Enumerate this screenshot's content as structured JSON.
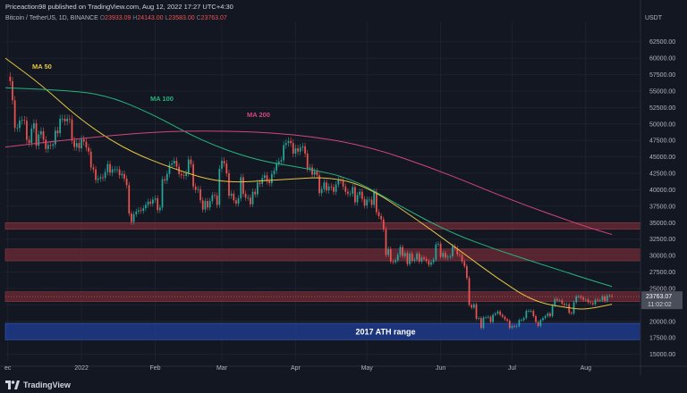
{
  "header": {
    "caption": "Priceaction98 published on TradingView.com, Aug 12, 2022 17:27 UTC+4:30",
    "symbol": "Bitcoin / TetherUS, 1D, BINANCE",
    "ohlc": [
      {
        "label": "O",
        "value": "23933.09"
      },
      {
        "label": "H",
        "value": "24143.00"
      },
      {
        "label": "L",
        "value": "23583.00"
      },
      {
        "label": "C",
        "value": "23763.07"
      }
    ],
    "currency": "USDT"
  },
  "footer": {
    "brand": "TradingView"
  },
  "chart_data": {
    "type": "candlestick",
    "y_ticks": [
      15000,
      17500,
      20000,
      22500,
      25000,
      27500,
      30000,
      32500,
      35000,
      37500,
      40000,
      42500,
      45000,
      47500,
      50000,
      52500,
      55000,
      57500,
      60000,
      62500
    ],
    "ylim": [
      14000,
      64500
    ],
    "x_tick_labels": [
      {
        "label": "ec",
        "date": "2021-12-01"
      },
      {
        "label": "2022",
        "date": "2022-01-01"
      },
      {
        "label": "Feb",
        "date": "2022-02-01"
      },
      {
        "label": "Mar",
        "date": "2022-03-01"
      },
      {
        "label": "Apr",
        "date": "2022-04-01"
      },
      {
        "label": "May",
        "date": "2022-05-01"
      },
      {
        "label": "Jun",
        "date": "2022-06-01"
      },
      {
        "label": "Jul",
        "date": "2022-07-01"
      },
      {
        "label": "Aug",
        "date": "2022-08-01"
      }
    ],
    "x_range": [
      "2021-11-30",
      "2022-08-24"
    ],
    "last_price": "23763.07",
    "countdown": "11:02:02",
    "colors": {
      "up": "#26a69a",
      "down": "#ef5350",
      "ma50": "#e5c443",
      "ma100": "#26b47c",
      "ma200": "#d1467a",
      "zone": "#6e2b36",
      "ath_zone": "#1e3a8a"
    },
    "zones": [
      {
        "type": "resistance",
        "from": 34000,
        "to": 35000
      },
      {
        "type": "resistance",
        "from": 29200,
        "to": 31000
      },
      {
        "type": "resistance",
        "from": 23000,
        "to": 24500
      },
      {
        "type": "ath",
        "from": 17200,
        "to": 19700,
        "label": "2017 ATH range"
      }
    ],
    "moving_averages": [
      {
        "name": "MA 50",
        "points": [
          [
            "2021-11-30",
            60000
          ],
          [
            "2021-12-15",
            56000
          ],
          [
            "2022-01-01",
            50500
          ],
          [
            "2022-01-20",
            46000
          ],
          [
            "2022-02-10",
            43000
          ],
          [
            "2022-03-01",
            41000
          ],
          [
            "2022-03-25",
            41500
          ],
          [
            "2022-04-15",
            42000
          ],
          [
            "2022-05-01",
            40500
          ],
          [
            "2022-05-20",
            36000
          ],
          [
            "2022-06-10",
            30500
          ],
          [
            "2022-06-25",
            26500
          ],
          [
            "2022-07-10",
            23000
          ],
          [
            "2022-07-25",
            22000
          ],
          [
            "2022-08-01",
            21800
          ],
          [
            "2022-08-12",
            22600
          ]
        ]
      },
      {
        "name": "MA 100",
        "points": [
          [
            "2021-11-30",
            55500
          ],
          [
            "2021-12-20",
            55200
          ],
          [
            "2022-01-10",
            54600
          ],
          [
            "2022-01-31",
            51500
          ],
          [
            "2022-02-20",
            47500
          ],
          [
            "2022-03-15",
            44500
          ],
          [
            "2022-04-05",
            43300
          ],
          [
            "2022-04-25",
            41700
          ],
          [
            "2022-05-15",
            37500
          ],
          [
            "2022-06-05",
            33500
          ],
          [
            "2022-06-25",
            30800
          ],
          [
            "2022-07-15",
            28500
          ],
          [
            "2022-08-01",
            26500
          ],
          [
            "2022-08-12",
            25300
          ]
        ]
      },
      {
        "name": "MA 200",
        "points": [
          [
            "2021-11-30",
            46500
          ],
          [
            "2021-12-31",
            47800
          ],
          [
            "2022-01-31",
            48800
          ],
          [
            "2022-02-28",
            49000
          ],
          [
            "2022-03-31",
            48500
          ],
          [
            "2022-04-30",
            46800
          ],
          [
            "2022-05-31",
            43000
          ],
          [
            "2022-06-30",
            38500
          ],
          [
            "2022-07-31",
            34500
          ],
          [
            "2022-08-12",
            33200
          ]
        ]
      }
    ],
    "candles_daily_close": [
      [
        "2021-12-01",
        57200
      ],
      [
        "2021-12-02",
        56500
      ],
      [
        "2021-12-03",
        53600
      ],
      [
        "2021-12-04",
        49400
      ],
      [
        "2021-12-05",
        49400
      ],
      [
        "2021-12-06",
        50500
      ],
      [
        "2021-12-07",
        50600
      ],
      [
        "2021-12-08",
        50500
      ],
      [
        "2021-12-09",
        47600
      ],
      [
        "2021-12-10",
        47100
      ],
      [
        "2021-12-11",
        49300
      ],
      [
        "2021-12-12",
        50100
      ],
      [
        "2021-12-13",
        46700
      ],
      [
        "2021-12-14",
        48400
      ],
      [
        "2021-12-15",
        48900
      ],
      [
        "2021-12-16",
        47600
      ],
      [
        "2021-12-17",
        46200
      ],
      [
        "2021-12-18",
        46800
      ],
      [
        "2021-12-19",
        46700
      ],
      [
        "2021-12-20",
        46900
      ],
      [
        "2021-12-21",
        49000
      ],
      [
        "2021-12-22",
        48600
      ],
      [
        "2021-12-23",
        50800
      ],
      [
        "2021-12-24",
        50800
      ],
      [
        "2021-12-25",
        50400
      ],
      [
        "2021-12-26",
        50800
      ],
      [
        "2021-12-27",
        50700
      ],
      [
        "2021-12-28",
        47500
      ],
      [
        "2021-12-29",
        46500
      ],
      [
        "2021-12-30",
        47100
      ],
      [
        "2021-12-31",
        46300
      ],
      [
        "2022-01-01",
        47700
      ],
      [
        "2022-01-02",
        47300
      ],
      [
        "2022-01-03",
        46400
      ],
      [
        "2022-01-04",
        45800
      ],
      [
        "2022-01-05",
        43400
      ],
      [
        "2022-01-06",
        43100
      ],
      [
        "2022-01-07",
        41500
      ],
      [
        "2022-01-08",
        41700
      ],
      [
        "2022-01-09",
        41900
      ],
      [
        "2022-01-10",
        41800
      ],
      [
        "2022-01-11",
        42700
      ],
      [
        "2022-01-12",
        43900
      ],
      [
        "2022-01-13",
        42600
      ],
      [
        "2022-01-14",
        43100
      ],
      [
        "2022-01-15",
        43100
      ],
      [
        "2022-01-16",
        43100
      ],
      [
        "2022-01-17",
        42200
      ],
      [
        "2022-01-18",
        42400
      ],
      [
        "2022-01-19",
        41700
      ],
      [
        "2022-01-20",
        40700
      ],
      [
        "2022-01-21",
        36400
      ],
      [
        "2022-01-22",
        35100
      ],
      [
        "2022-01-23",
        36300
      ],
      [
        "2022-01-24",
        36700
      ],
      [
        "2022-01-25",
        36900
      ],
      [
        "2022-01-26",
        36800
      ],
      [
        "2022-01-27",
        37200
      ],
      [
        "2022-01-28",
        37700
      ],
      [
        "2022-01-29",
        38200
      ],
      [
        "2022-01-30",
        37900
      ],
      [
        "2022-01-31",
        38500
      ],
      [
        "2022-02-01",
        38700
      ],
      [
        "2022-02-02",
        36900
      ],
      [
        "2022-02-03",
        37300
      ],
      [
        "2022-02-04",
        41600
      ],
      [
        "2022-02-05",
        41400
      ],
      [
        "2022-02-06",
        42400
      ],
      [
        "2022-02-07",
        43800
      ],
      [
        "2022-02-08",
        44000
      ],
      [
        "2022-02-09",
        44400
      ],
      [
        "2022-02-10",
        43500
      ],
      [
        "2022-02-11",
        42400
      ],
      [
        "2022-02-12",
        42200
      ],
      [
        "2022-02-13",
        42100
      ],
      [
        "2022-02-14",
        42500
      ],
      [
        "2022-02-15",
        44600
      ],
      [
        "2022-02-16",
        43900
      ],
      [
        "2022-02-17",
        40500
      ],
      [
        "2022-02-18",
        40000
      ],
      [
        "2022-02-19",
        40100
      ],
      [
        "2022-02-20",
        38400
      ],
      [
        "2022-02-21",
        37000
      ],
      [
        "2022-02-22",
        38300
      ],
      [
        "2022-02-23",
        37300
      ],
      [
        "2022-02-24",
        38300
      ],
      [
        "2022-02-25",
        39200
      ],
      [
        "2022-02-26",
        39100
      ],
      [
        "2022-02-27",
        37700
      ],
      [
        "2022-02-28",
        43200
      ],
      [
        "2022-03-01",
        44400
      ],
      [
        "2022-03-02",
        44000
      ],
      [
        "2022-03-03",
        42500
      ],
      [
        "2022-03-04",
        39100
      ],
      [
        "2022-03-05",
        39400
      ],
      [
        "2022-03-06",
        38400
      ],
      [
        "2022-03-07",
        37900
      ],
      [
        "2022-03-08",
        38700
      ],
      [
        "2022-03-09",
        41900
      ],
      [
        "2022-03-10",
        39400
      ],
      [
        "2022-03-11",
        38800
      ],
      [
        "2022-03-12",
        38800
      ],
      [
        "2022-03-13",
        37800
      ],
      [
        "2022-03-14",
        39700
      ],
      [
        "2022-03-15",
        39300
      ],
      [
        "2022-03-16",
        41100
      ],
      [
        "2022-03-17",
        40900
      ],
      [
        "2022-03-18",
        41800
      ],
      [
        "2022-03-19",
        42200
      ],
      [
        "2022-03-20",
        41300
      ],
      [
        "2022-03-21",
        41000
      ],
      [
        "2022-03-22",
        42400
      ],
      [
        "2022-03-23",
        42900
      ],
      [
        "2022-03-24",
        44000
      ],
      [
        "2022-03-25",
        44300
      ],
      [
        "2022-03-26",
        44500
      ],
      [
        "2022-03-27",
        46800
      ],
      [
        "2022-03-28",
        47100
      ],
      [
        "2022-03-29",
        47400
      ],
      [
        "2022-03-30",
        47100
      ],
      [
        "2022-03-31",
        45500
      ],
      [
        "2022-04-01",
        46300
      ],
      [
        "2022-04-02",
        45800
      ],
      [
        "2022-04-03",
        46400
      ],
      [
        "2022-04-04",
        46600
      ],
      [
        "2022-04-05",
        45500
      ],
      [
        "2022-04-06",
        43200
      ],
      [
        "2022-04-07",
        43400
      ],
      [
        "2022-04-08",
        42300
      ],
      [
        "2022-04-09",
        42800
      ],
      [
        "2022-04-10",
        42200
      ],
      [
        "2022-04-11",
        39500
      ],
      [
        "2022-04-12",
        40100
      ],
      [
        "2022-04-13",
        41100
      ],
      [
        "2022-04-14",
        39900
      ],
      [
        "2022-04-15",
        40500
      ],
      [
        "2022-04-16",
        40400
      ],
      [
        "2022-04-17",
        39700
      ],
      [
        "2022-04-18",
        40800
      ],
      [
        "2022-04-19",
        41500
      ],
      [
        "2022-04-20",
        41400
      ],
      [
        "2022-04-21",
        40500
      ],
      [
        "2022-04-22",
        39700
      ],
      [
        "2022-04-23",
        39400
      ],
      [
        "2022-04-24",
        39400
      ],
      [
        "2022-04-25",
        40400
      ],
      [
        "2022-04-26",
        38100
      ],
      [
        "2022-04-27",
        39200
      ],
      [
        "2022-04-28",
        39700
      ],
      [
        "2022-04-29",
        38600
      ],
      [
        "2022-04-30",
        37600
      ],
      [
        "2022-05-01",
        38500
      ],
      [
        "2022-05-02",
        38500
      ],
      [
        "2022-05-03",
        37700
      ],
      [
        "2022-05-04",
        39700
      ],
      [
        "2022-05-05",
        36600
      ],
      [
        "2022-05-06",
        36000
      ],
      [
        "2022-05-07",
        35500
      ],
      [
        "2022-05-08",
        34000
      ],
      [
        "2022-05-09",
        30100
      ],
      [
        "2022-05-10",
        31000
      ],
      [
        "2022-05-11",
        29100
      ],
      [
        "2022-05-12",
        29000
      ],
      [
        "2022-05-13",
        29300
      ],
      [
        "2022-05-14",
        30100
      ],
      [
        "2022-05-15",
        31300
      ],
      [
        "2022-05-16",
        29900
      ],
      [
        "2022-05-17",
        30400
      ],
      [
        "2022-05-18",
        28700
      ],
      [
        "2022-05-19",
        30300
      ],
      [
        "2022-05-20",
        29200
      ],
      [
        "2022-05-21",
        29400
      ],
      [
        "2022-05-22",
        30300
      ],
      [
        "2022-05-23",
        29100
      ],
      [
        "2022-05-24",
        29700
      ],
      [
        "2022-05-25",
        29500
      ],
      [
        "2022-05-26",
        29200
      ],
      [
        "2022-05-27",
        28600
      ],
      [
        "2022-05-28",
        29000
      ],
      [
        "2022-05-29",
        29400
      ],
      [
        "2022-05-30",
        31700
      ],
      [
        "2022-05-31",
        31800
      ],
      [
        "2022-06-01",
        29800
      ],
      [
        "2022-06-02",
        30400
      ],
      [
        "2022-06-03",
        29700
      ],
      [
        "2022-06-04",
        29800
      ],
      [
        "2022-06-05",
        29900
      ],
      [
        "2022-06-06",
        31400
      ],
      [
        "2022-06-07",
        31100
      ],
      [
        "2022-06-08",
        30200
      ],
      [
        "2022-06-09",
        30100
      ],
      [
        "2022-06-10",
        29100
      ],
      [
        "2022-06-11",
        28400
      ],
      [
        "2022-06-12",
        26600
      ],
      [
        "2022-06-13",
        22500
      ],
      [
        "2022-06-14",
        22100
      ],
      [
        "2022-06-15",
        22600
      ],
      [
        "2022-06-16",
        20400
      ],
      [
        "2022-06-17",
        20500
      ],
      [
        "2022-06-18",
        19000
      ],
      [
        "2022-06-19",
        20600
      ],
      [
        "2022-06-20",
        20600
      ],
      [
        "2022-06-21",
        20700
      ],
      [
        "2022-06-22",
        19900
      ],
      [
        "2022-06-23",
        21000
      ],
      [
        "2022-06-24",
        21200
      ],
      [
        "2022-06-25",
        21500
      ],
      [
        "2022-06-26",
        21000
      ],
      [
        "2022-06-27",
        20700
      ],
      [
        "2022-06-28",
        20300
      ],
      [
        "2022-06-29",
        20100
      ],
      [
        "2022-06-30",
        19000
      ],
      [
        "2022-07-01",
        19300
      ],
      [
        "2022-07-02",
        19200
      ],
      [
        "2022-07-03",
        19300
      ],
      [
        "2022-07-04",
        20200
      ],
      [
        "2022-07-05",
        20200
      ],
      [
        "2022-07-06",
        20500
      ],
      [
        "2022-07-07",
        21600
      ],
      [
        "2022-07-08",
        21600
      ],
      [
        "2022-07-09",
        21600
      ],
      [
        "2022-07-10",
        20800
      ],
      [
        "2022-07-11",
        19900
      ],
      [
        "2022-07-12",
        19300
      ],
      [
        "2022-07-13",
        20200
      ],
      [
        "2022-07-14",
        20500
      ],
      [
        "2022-07-15",
        20800
      ],
      [
        "2022-07-16",
        21200
      ],
      [
        "2022-07-17",
        20800
      ],
      [
        "2022-07-18",
        22400
      ],
      [
        "2022-07-19",
        23400
      ],
      [
        "2022-07-20",
        23200
      ],
      [
        "2022-07-21",
        23200
      ],
      [
        "2022-07-22",
        22700
      ],
      [
        "2022-07-23",
        22500
      ],
      [
        "2022-07-24",
        22600
      ],
      [
        "2022-07-25",
        21300
      ],
      [
        "2022-07-26",
        21200
      ],
      [
        "2022-07-27",
        22900
      ],
      [
        "2022-07-28",
        23800
      ],
      [
        "2022-07-29",
        23800
      ],
      [
        "2022-07-30",
        23600
      ],
      [
        "2022-07-31",
        23300
      ],
      [
        "2022-08-01",
        23300
      ],
      [
        "2022-08-02",
        22900
      ],
      [
        "2022-08-03",
        22800
      ],
      [
        "2022-08-04",
        22600
      ],
      [
        "2022-08-05",
        23300
      ],
      [
        "2022-08-06",
        23200
      ],
      [
        "2022-08-07",
        23200
      ],
      [
        "2022-08-08",
        23800
      ],
      [
        "2022-08-09",
        23100
      ],
      [
        "2022-08-10",
        23900
      ],
      [
        "2022-08-11",
        23900
      ],
      [
        "2022-08-12",
        23763
      ]
    ]
  }
}
